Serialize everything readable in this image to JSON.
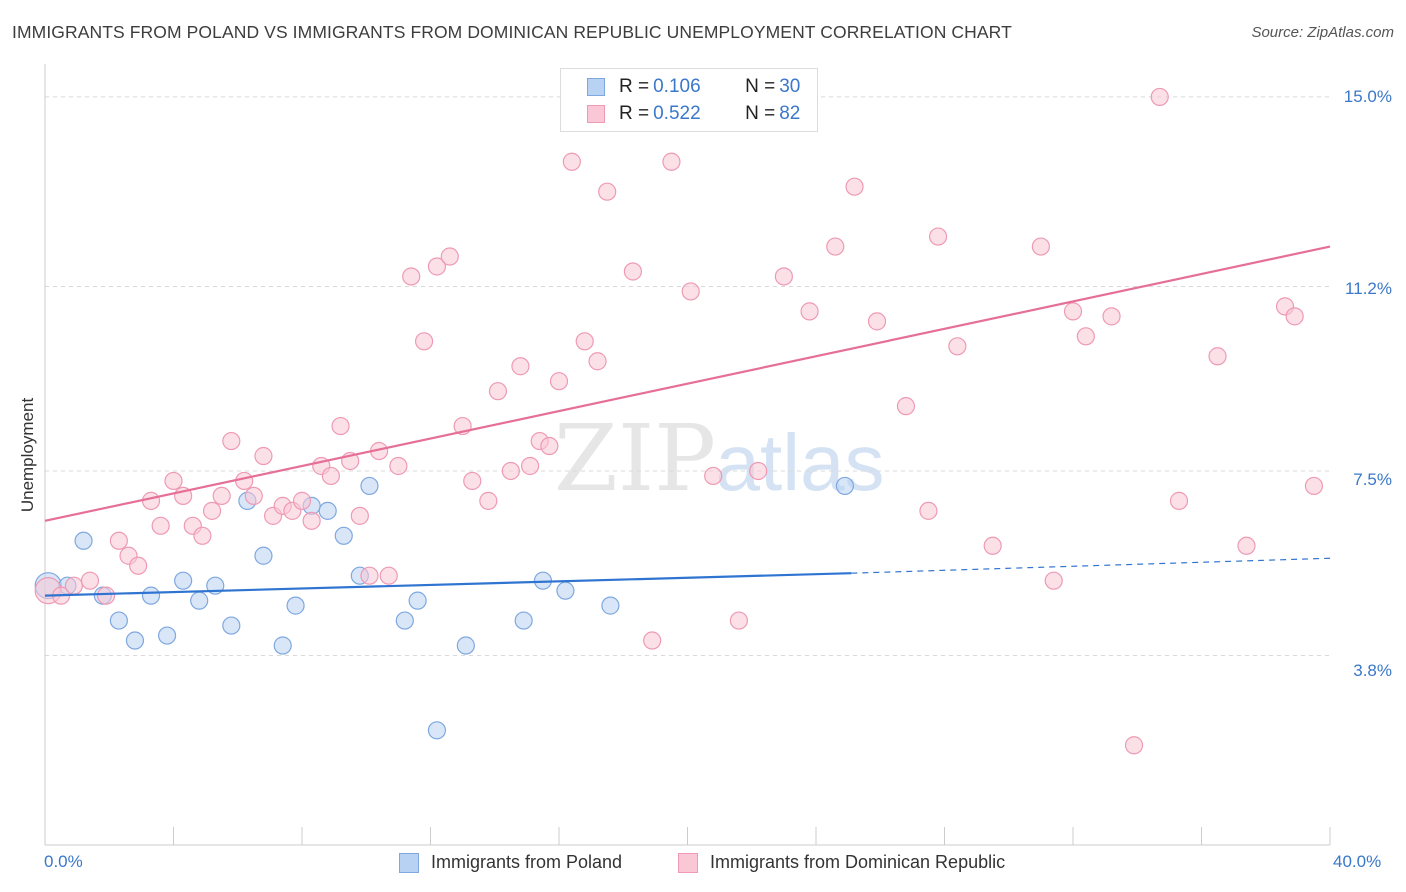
{
  "header": {
    "title": "IMMIGRANTS FROM POLAND VS IMMIGRANTS FROM DOMINICAN REPUBLIC UNEMPLOYMENT CORRELATION CHART",
    "source": "Source: ZipAtlas.com"
  },
  "legend_top": {
    "poland": {
      "r_label": "R = ",
      "r_value": "0.106",
      "n_label": "N = ",
      "n_value": "30"
    },
    "dominican": {
      "r_label": "R = ",
      "r_value": "0.522",
      "n_label": "N = ",
      "n_value": "82"
    }
  },
  "colors": {
    "poland_fill": "#b8d2f3",
    "poland_stroke": "#7fa8df",
    "poland_line": "#2f74d0",
    "dominican_fill": "#f9c7d6",
    "dominican_stroke": "#ee9ab4",
    "dominican_line": "#e66f98",
    "axis_label": "#3a78c9"
  },
  "chart_data": {
    "type": "scatter",
    "title": "IMMIGRANTS FROM POLAND VS IMMIGRANTS FROM DOMINICAN REPUBLIC UNEMPLOYMENT CORRELATION CHART",
    "xlabel": "",
    "ylabel": "Unemployment",
    "xlim": [
      0,
      40
    ],
    "ylim": [
      0,
      15.5
    ],
    "x_tick_labels": [
      "0.0%",
      "40.0%"
    ],
    "y_ticks": [
      3.8,
      7.5,
      11.2,
      15.0
    ],
    "y_tick_labels": [
      "3.8%",
      "7.5%",
      "11.2%",
      "15.0%"
    ],
    "grid": true,
    "watermark": "ZIPatlas",
    "series": [
      {
        "name": "Immigrants from Poland",
        "points": [
          [
            0.1,
            5.2
          ],
          [
            0.7,
            5.2
          ],
          [
            1.2,
            6.1
          ],
          [
            1.8,
            5.0
          ],
          [
            2.3,
            4.5
          ],
          [
            2.8,
            4.1
          ],
          [
            3.3,
            5.0
          ],
          [
            3.8,
            4.2
          ],
          [
            4.3,
            5.3
          ],
          [
            4.8,
            4.9
          ],
          [
            5.3,
            5.2
          ],
          [
            5.8,
            4.4
          ],
          [
            6.3,
            6.9
          ],
          [
            6.8,
            5.8
          ],
          [
            7.4,
            4.0
          ],
          [
            7.8,
            4.8
          ],
          [
            8.3,
            6.8
          ],
          [
            8.8,
            6.7
          ],
          [
            9.3,
            6.2
          ],
          [
            9.8,
            5.4
          ],
          [
            10.1,
            7.2
          ],
          [
            11.2,
            4.5
          ],
          [
            11.6,
            4.9
          ],
          [
            12.2,
            2.3
          ],
          [
            13.1,
            4.0
          ],
          [
            14.9,
            4.5
          ],
          [
            15.5,
            5.3
          ],
          [
            16.2,
            5.1
          ],
          [
            17.6,
            4.8
          ],
          [
            24.9,
            7.2
          ]
        ],
        "trend": {
          "x": [
            0,
            25.1
          ],
          "y": [
            5.0,
            5.45
          ],
          "dashed_to": [
            40,
            5.75
          ]
        }
      },
      {
        "name": "Immigrants from Dominican Republic",
        "points": [
          [
            0.1,
            5.1
          ],
          [
            0.5,
            5.0
          ],
          [
            0.9,
            5.2
          ],
          [
            1.4,
            5.3
          ],
          [
            1.9,
            5.0
          ],
          [
            2.3,
            6.1
          ],
          [
            2.6,
            5.8
          ],
          [
            2.9,
            5.6
          ],
          [
            3.3,
            6.9
          ],
          [
            3.6,
            6.4
          ],
          [
            4.0,
            7.3
          ],
          [
            4.3,
            7.0
          ],
          [
            4.6,
            6.4
          ],
          [
            4.9,
            6.2
          ],
          [
            5.2,
            6.7
          ],
          [
            5.5,
            7.0
          ],
          [
            5.8,
            8.1
          ],
          [
            6.2,
            7.3
          ],
          [
            6.5,
            7.0
          ],
          [
            6.8,
            7.8
          ],
          [
            7.1,
            6.6
          ],
          [
            7.4,
            6.8
          ],
          [
            7.7,
            6.7
          ],
          [
            8.0,
            6.9
          ],
          [
            8.3,
            6.5
          ],
          [
            8.6,
            7.6
          ],
          [
            8.9,
            7.4
          ],
          [
            9.2,
            8.4
          ],
          [
            9.5,
            7.7
          ],
          [
            9.8,
            6.6
          ],
          [
            10.1,
            5.4
          ],
          [
            10.4,
            7.9
          ],
          [
            10.7,
            5.4
          ],
          [
            11.0,
            7.6
          ],
          [
            11.4,
            11.4
          ],
          [
            11.8,
            10.1
          ],
          [
            12.2,
            11.6
          ],
          [
            12.6,
            11.8
          ],
          [
            13.0,
            8.4
          ],
          [
            13.3,
            7.3
          ],
          [
            13.8,
            6.9
          ],
          [
            14.1,
            9.1
          ],
          [
            14.5,
            7.5
          ],
          [
            14.8,
            9.6
          ],
          [
            15.1,
            7.6
          ],
          [
            15.4,
            8.1
          ],
          [
            15.7,
            8.0
          ],
          [
            16.0,
            9.3
          ],
          [
            16.4,
            13.7
          ],
          [
            16.8,
            10.1
          ],
          [
            17.2,
            9.7
          ],
          [
            17.5,
            13.1
          ],
          [
            18.3,
            11.5
          ],
          [
            18.9,
            4.1
          ],
          [
            19.5,
            13.7
          ],
          [
            20.1,
            11.1
          ],
          [
            20.8,
            7.4
          ],
          [
            21.6,
            4.5
          ],
          [
            22.2,
            7.5
          ],
          [
            23.0,
            11.4
          ],
          [
            23.8,
            10.7
          ],
          [
            24.6,
            12.0
          ],
          [
            25.2,
            13.2
          ],
          [
            25.9,
            10.5
          ],
          [
            26.8,
            8.8
          ],
          [
            27.5,
            6.7
          ],
          [
            27.8,
            12.2
          ],
          [
            28.4,
            10.0
          ],
          [
            29.5,
            6.0
          ],
          [
            31.0,
            12.0
          ],
          [
            31.4,
            5.3
          ],
          [
            32.0,
            10.7
          ],
          [
            32.4,
            10.2
          ],
          [
            33.2,
            10.6
          ],
          [
            33.9,
            2.0
          ],
          [
            34.7,
            15.0
          ],
          [
            35.3,
            6.9
          ],
          [
            36.5,
            9.8
          ],
          [
            38.6,
            10.8
          ],
          [
            38.9,
            10.6
          ],
          [
            39.5,
            7.2
          ],
          [
            37.4,
            6.0
          ]
        ],
        "trend": {
          "x": [
            0,
            40
          ],
          "y": [
            6.5,
            12.0
          ]
        }
      }
    ]
  },
  "legend_bottom": {
    "poland_label": "Immigrants from Poland",
    "dominican_label": "Immigrants from Dominican Republic"
  }
}
